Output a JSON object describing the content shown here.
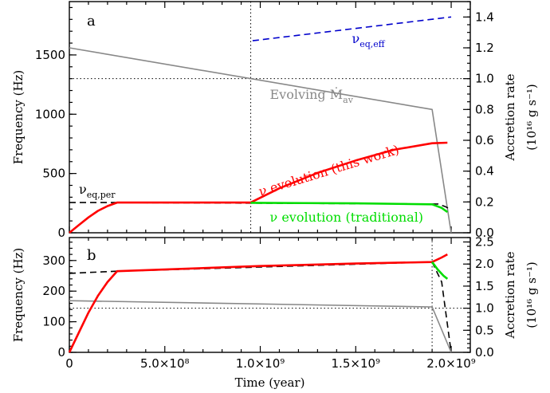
{
  "chart_data": [
    {
      "type": "line",
      "panel_label": "a",
      "xlabel": "",
      "ylabel": "Frequency (Hz)",
      "ylabel_right": "Accretion rate",
      "ylabel_right_units": "(10¹⁶ g s⁻¹)",
      "xlim": [
        0,
        2100000000.0
      ],
      "ylim": [
        0,
        1950
      ],
      "ylim_right": [
        0,
        1.5
      ],
      "yticks": [
        {
          "v": 0,
          "label": "0"
        },
        {
          "v": 500,
          "label": "500"
        },
        {
          "v": 1000,
          "label": "1000"
        },
        {
          "v": 1500,
          "label": "1500"
        }
      ],
      "yticks_right": [
        {
          "v": 0,
          "label": "0.0"
        },
        {
          "v": 0.2,
          "label": "0.2"
        },
        {
          "v": 0.4,
          "label": "0.4"
        },
        {
          "v": 0.6,
          "label": "0.6"
        },
        {
          "v": 0.8,
          "label": "0.8"
        },
        {
          "v": 1.0,
          "label": "1.0"
        },
        {
          "v": 1.2,
          "label": "1.2"
        },
        {
          "v": 1.4,
          "label": "1.4"
        }
      ],
      "vline_x": 950000000.0,
      "hline_right": 1.0,
      "annotations": [
        {
          "text": "ν",
          "sub": "eq,eff",
          "color": "#0000cc",
          "x": 1480000000.0,
          "y": 1600
        },
        {
          "text": "Evolving Ṁ",
          "sub": "av",
          "color": "#888888",
          "x": 1050000000.0,
          "y": 1130
        },
        {
          "text": "ν evolution (this work)",
          "sub": "",
          "color": "#ff0000",
          "x": 1000000000.0,
          "y": 310,
          "rotate": -17
        },
        {
          "text": "ν",
          "sub": "eq,per",
          "color": "#000000",
          "x": 50000000.0,
          "y": 330
        },
        {
          "text": "ν evolution (traditional)",
          "sub": "",
          "color": "#00dd00",
          "x": 1050000000.0,
          "y": 95
        }
      ],
      "series": [
        {
          "role": "accretion-rate-right-axis",
          "color": "#888888",
          "dash": "",
          "axis": "right",
          "x": [
            0,
            1900000000.0,
            2000000000.0
          ],
          "y": [
            1.2,
            0.8,
            0.0
          ]
        },
        {
          "role": "nu-eq-eff",
          "color": "#0000cc",
          "dash": "8,5",
          "axis": "left",
          "x": [
            960000000.0,
            2000000000.0
          ],
          "y": [
            1620,
            1820
          ]
        },
        {
          "role": "nu-eq-per",
          "color": "#000000",
          "dash": "8,5",
          "axis": "left",
          "x": [
            0,
            250000000.0,
            1930000000.0,
            1970000000.0,
            2000000000.0
          ],
          "y": [
            255,
            255,
            243,
            220,
            195
          ]
        },
        {
          "role": "nu-evolution-this-work",
          "color": "#ff0000",
          "dash": "",
          "axis": "left",
          "x": [
            0,
            50000000.0,
            100000000.0,
            150000000.0,
            200000000.0,
            250000000.0,
            950000000.0,
            1100000000.0,
            1300000000.0,
            1500000000.0,
            1700000000.0,
            1900000000.0,
            1980000000.0
          ],
          "y": [
            0,
            65,
            130,
            185,
            225,
            255,
            255,
            375,
            505,
            610,
            700,
            755,
            760
          ]
        },
        {
          "role": "nu-evolution-traditional",
          "color": "#00dd00",
          "dash": "",
          "axis": "left",
          "x": [
            950000000.0,
            1500000000.0,
            1900000000.0,
            1950000000.0,
            1980000000.0
          ],
          "y": [
            253,
            248,
            240,
            210,
            175
          ]
        }
      ]
    },
    {
      "type": "line",
      "panel_label": "b",
      "xlabel": "Time (year)",
      "ylabel": "Frequency (Hz)",
      "ylabel_right": "Accretion rate",
      "ylabel_right_units": "(10¹⁶ g s⁻¹)",
      "xlim": [
        0,
        2100000000.0
      ],
      "ylim": [
        0,
        375
      ],
      "ylim_right": [
        0,
        2.6
      ],
      "xticks": [
        {
          "v": 0,
          "label": "0"
        },
        {
          "v": 500000000.0,
          "label": "5.0×10⁸"
        },
        {
          "v": 1000000000.0,
          "label": "1.0×10⁹"
        },
        {
          "v": 1500000000.0,
          "label": "1.5×10⁹"
        },
        {
          "v": 2000000000.0,
          "label": "2.0×10⁹"
        }
      ],
      "yticks": [
        {
          "v": 0,
          "label": "0"
        },
        {
          "v": 100,
          "label": "100"
        },
        {
          "v": 200,
          "label": "200"
        },
        {
          "v": 300,
          "label": "300"
        }
      ],
      "yticks_right": [
        {
          "v": 0,
          "label": "0.0"
        },
        {
          "v": 0.5,
          "label": "0.5"
        },
        {
          "v": 1.0,
          "label": "1.0"
        },
        {
          "v": 1.5,
          "label": "1.5"
        },
        {
          "v": 2.0,
          "label": "2.0"
        },
        {
          "v": 2.5,
          "label": "2.5"
        }
      ],
      "vline_x": 1900000000.0,
      "hline_right": 1.0,
      "series": [
        {
          "role": "accretion-rate-right-axis",
          "color": "#888888",
          "dash": "",
          "axis": "right",
          "x": [
            0,
            1900000000.0,
            2000000000.0
          ],
          "y": [
            1.17,
            1.03,
            0.0
          ]
        },
        {
          "role": "nu-eq",
          "color": "#000000",
          "dash": "8,5",
          "axis": "left",
          "x": [
            0,
            250000000.0,
            1900000000.0,
            1950000000.0,
            2000000000.0
          ],
          "y": [
            258,
            265,
            295,
            230,
            0
          ]
        },
        {
          "role": "nu-evolution-this-work",
          "color": "#ff0000",
          "dash": "",
          "axis": "left",
          "x": [
            0,
            50000000.0,
            100000000.0,
            150000000.0,
            200000000.0,
            250000000.0,
            1000000000.0,
            1500000000.0,
            1900000000.0,
            1950000000.0,
            1980000000.0
          ],
          "y": [
            0,
            65,
            130,
            185,
            230,
            265,
            282,
            290,
            295,
            310,
            320
          ]
        },
        {
          "role": "nu-evolution-traditional",
          "color": "#00dd00",
          "dash": "",
          "axis": "left",
          "x": [
            1900000000.0,
            1930000000.0,
            1960000000.0,
            1980000000.0
          ],
          "y": [
            295,
            270,
            250,
            240
          ]
        }
      ]
    }
  ]
}
